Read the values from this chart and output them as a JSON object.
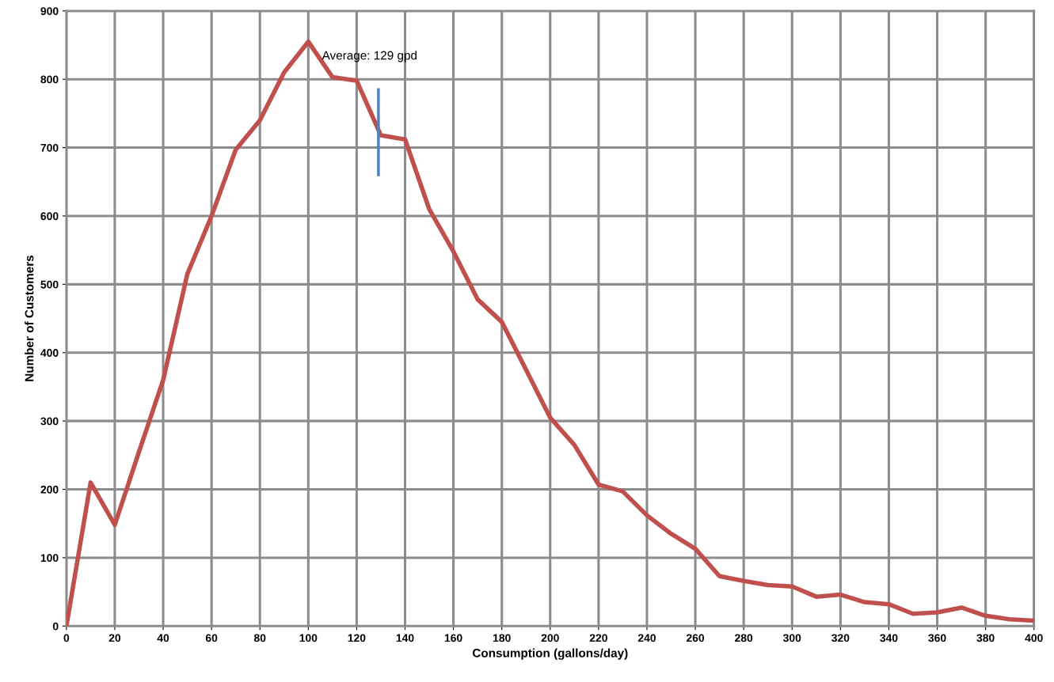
{
  "chart_data": {
    "type": "line",
    "xlabel": "Consumption (gallons/day)",
    "ylabel": "Number of Customers",
    "x": [
      0,
      10,
      20,
      30,
      40,
      50,
      60,
      70,
      80,
      90,
      100,
      110,
      120,
      130,
      140,
      150,
      160,
      170,
      180,
      190,
      200,
      210,
      220,
      230,
      240,
      250,
      260,
      270,
      280,
      290,
      300,
      310,
      320,
      330,
      340,
      350,
      360,
      370,
      380,
      390,
      400
    ],
    "series": [
      {
        "color": "#c0504d",
        "values": [
          0,
          210,
          148,
          255,
          360,
          515,
          600,
          697,
          740,
          810,
          855,
          803,
          798,
          718,
          712,
          610,
          548,
          478,
          445,
          375,
          305,
          265,
          207,
          197,
          162,
          135,
          113,
          73,
          66,
          60,
          58,
          43,
          46,
          35,
          32,
          18,
          20,
          27,
          15,
          10,
          8
        ]
      },
      {
        "color": "#4f81bd",
        "x": [
          129,
          129
        ],
        "values": [
          660,
          785
        ]
      }
    ],
    "annotations": [
      {
        "text": "Average: 129 gpd",
        "x": 129,
        "y": 785
      }
    ],
    "xlim": [
      0,
      400
    ],
    "xticks": [
      0,
      20,
      40,
      60,
      80,
      100,
      120,
      140,
      160,
      180,
      200,
      220,
      240,
      260,
      280,
      300,
      320,
      340,
      360,
      380,
      400
    ],
    "ylim": [
      0,
      900
    ],
    "yticks": [
      0,
      100,
      200,
      300,
      400,
      500,
      600,
      700,
      800,
      900
    ],
    "grid": true,
    "legend": false,
    "marker": "none",
    "line_style": "solid"
  }
}
